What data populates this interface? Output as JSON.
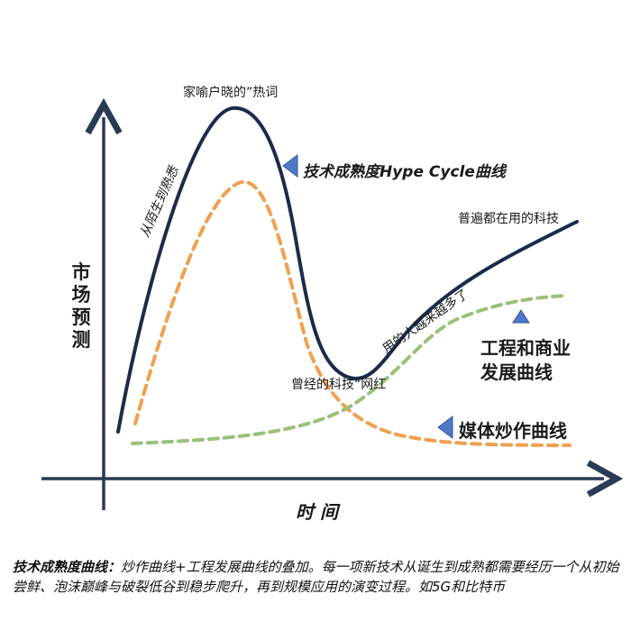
{
  "labels": {
    "y_axis": "市场预测",
    "x_axis": "时 间",
    "peak": "家喻户晓的”热词",
    "hype_cycle": "技术成熟度Hype Cycle曲线",
    "rising": "从陌生到熟悉",
    "trough": "曾经的科技“网红",
    "slope": "用的人越来越多了",
    "plateau": "普遍都在用的科技",
    "engineering": [
      "工程和商业",
      "发展曲线"
    ],
    "media": "媒体炒作曲线"
  },
  "caption": {
    "title": "技术成熟度曲线：",
    "body": "炒作曲线+工程发展曲线的叠加。每一项新技术从诞生到成熟都需要经历一个从初始尝鲜、泡沫巅峰与破裂低谷到稳步爬升，再到规模应用的演变过程。如5G和比特币"
  },
  "colors": {
    "axis": "#2b3a55",
    "hype_curve": "#1c2b4a",
    "media_curve": "#f0a050",
    "engineering_curve": "#9cc07a",
    "pointer_arrow": "#4f79c8"
  }
}
